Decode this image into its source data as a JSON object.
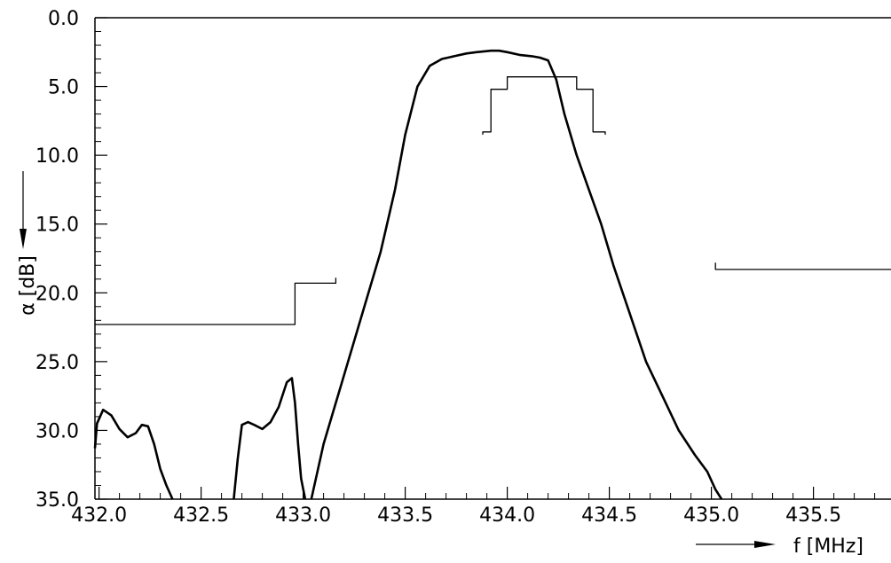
{
  "chart_data": {
    "type": "line",
    "title": "",
    "xlabel": "f [MHz]",
    "ylabel": "α [dB]",
    "xlim": [
      431.98,
      435.88
    ],
    "ylim": [
      0,
      35
    ],
    "y_inverted": true,
    "grid": false,
    "x_ticks": [
      432.0,
      432.5,
      433.0,
      433.5,
      434.0,
      434.5,
      435.0,
      435.5
    ],
    "x_tick_labels": [
      "432.0",
      "432.5",
      "433.0",
      "433.5",
      "434.0",
      "434.5",
      "435.0",
      "435.5"
    ],
    "y_ticks": [
      0,
      5,
      10,
      15,
      20,
      25,
      30,
      35
    ],
    "y_tick_labels": [
      "0.0",
      "5.0",
      "10.0",
      "15.0",
      "20.0",
      "25.0",
      "30.0",
      "35.0"
    ],
    "series": [
      {
        "role": "attenuation",
        "segments": [
          {
            "x": [
              431.98,
              431.99,
              432.02,
              432.06,
              432.1,
              432.14,
              432.18,
              432.21,
              432.24,
              432.27,
              432.3,
              432.33,
              432.36
            ],
            "y": [
              31.3,
              29.5,
              28.5,
              28.9,
              29.9,
              30.5,
              30.2,
              29.6,
              29.7,
              31.0,
              32.8,
              34.0,
              35.0
            ]
          },
          {
            "x": [
              432.66,
              432.68,
              432.7,
              432.73,
              432.76,
              432.8,
              432.84,
              432.88,
              432.92,
              432.945,
              432.96,
              432.975,
              432.99,
              433.01
            ],
            "y": [
              35.0,
              32.0,
              29.6,
              29.4,
              29.6,
              29.9,
              29.4,
              28.3,
              26.5,
              26.2,
              28.0,
              31.0,
              33.5,
              35.0
            ]
          },
          {
            "x": [
              433.04,
              433.1,
              433.16,
              433.22,
              433.3,
              433.38,
              433.45,
              433.5,
              433.56,
              433.62,
              433.68,
              433.74,
              433.8,
              433.85,
              433.92,
              433.96,
              434.0,
              434.06,
              434.12,
              434.16,
              434.2,
              434.24,
              434.28,
              434.34,
              434.4,
              434.46,
              434.52,
              434.6,
              434.68,
              434.76,
              434.84,
              434.92,
              434.98,
              435.02,
              435.05
            ],
            "y": [
              35.0,
              31.0,
              28.0,
              25.0,
              21.0,
              17.0,
              12.5,
              8.5,
              5.0,
              3.5,
              3.0,
              2.8,
              2.6,
              2.5,
              2.4,
              2.4,
              2.5,
              2.7,
              2.8,
              2.9,
              3.1,
              4.5,
              7.0,
              10.0,
              12.5,
              15.0,
              18.0,
              21.5,
              25.0,
              27.5,
              30.0,
              31.8,
              33.0,
              34.3,
              35.0
            ]
          }
        ]
      },
      {
        "role": "passband_template",
        "segments": [
          {
            "x": [
              433.88,
              433.88,
              433.92,
              433.92,
              434.0,
              434.0,
              434.34,
              434.34,
              434.42,
              434.42,
              434.48,
              434.48
            ],
            "y": [
              8.5,
              8.3,
              8.3,
              5.2,
              5.2,
              4.3,
              4.3,
              5.2,
              5.2,
              8.3,
              8.3,
              8.5
            ]
          }
        ]
      },
      {
        "role": "stopband_template",
        "segments": [
          {
            "x": [
              431.98,
              432.96,
              432.96,
              433.16,
              433.16
            ],
            "y": [
              22.3,
              22.3,
              19.3,
              19.3,
              18.9
            ]
          },
          {
            "x": [
              435.02,
              435.02,
              435.88
            ],
            "y": [
              17.8,
              18.3,
              18.3
            ]
          }
        ]
      }
    ]
  }
}
